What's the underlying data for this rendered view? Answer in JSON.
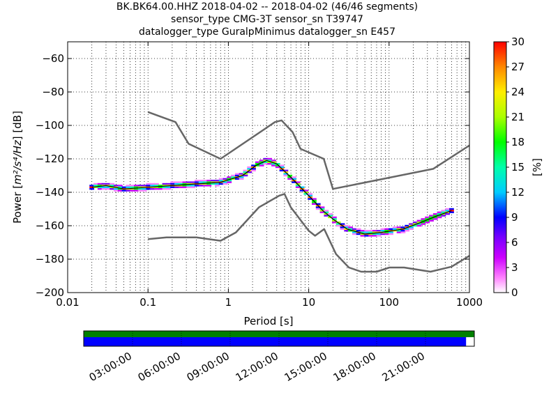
{
  "title_lines": [
    "BK.BK64.00.HHZ   2018-04-02 -- 2018-04-02  (46/46 segments)",
    "sensor_type CMG-3T sensor_sn T39747",
    "datalogger_type GuralpMinimus datalogger_sn E457"
  ],
  "chart_data": {
    "type": "heatmap",
    "xlabel": "Period [s]",
    "ylabel_prefix": "Power [",
    "ylabel_units": "m²/s⁴/Hz",
    "ylabel_suffix": "] [dB]",
    "xscale": "log",
    "xlim": [
      0.01,
      1000
    ],
    "ylim": [
      -200,
      -50
    ],
    "x_ticks": [
      {
        "v": 0.01,
        "label": "0.01"
      },
      {
        "v": 0.1,
        "label": "0.1"
      },
      {
        "v": 1,
        "label": "1"
      },
      {
        "v": 10,
        "label": "10"
      },
      {
        "v": 100,
        "label": "100"
      },
      {
        "v": 1000,
        "label": "1000"
      }
    ],
    "y_ticks": [
      {
        "v": -60,
        "label": "−60"
      },
      {
        "v": -80,
        "label": "−80"
      },
      {
        "v": -100,
        "label": "−100"
      },
      {
        "v": -120,
        "label": "−120"
      },
      {
        "v": -140,
        "label": "−140"
      },
      {
        "v": -160,
        "label": "−160"
      },
      {
        "v": -180,
        "label": "−180"
      },
      {
        "v": -200,
        "label": "−200"
      }
    ],
    "grid": true,
    "colorbar": {
      "label": "[%]",
      "range": [
        0,
        30
      ],
      "ticks": [
        {
          "v": 0,
          "label": "0"
        },
        {
          "v": 3,
          "label": "3"
        },
        {
          "v": 6,
          "label": "6"
        },
        {
          "v": 9,
          "label": "9"
        },
        {
          "v": 12,
          "label": "12"
        },
        {
          "v": 15,
          "label": "15"
        },
        {
          "v": 18,
          "label": "18"
        },
        {
          "v": 21,
          "label": "21"
        },
        {
          "v": 24,
          "label": "24"
        },
        {
          "v": 27,
          "label": "27"
        },
        {
          "v": 30,
          "label": "30"
        }
      ]
    },
    "nhnm": [
      [
        0.1,
        -92
      ],
      [
        0.22,
        -98
      ],
      [
        0.32,
        -111
      ],
      [
        0.8,
        -120
      ],
      [
        3.8,
        -98
      ],
      [
        4.6,
        -97
      ],
      [
        6.3,
        -104
      ],
      [
        7.9,
        -114
      ],
      [
        15.4,
        -120
      ],
      [
        20,
        -138
      ],
      [
        354,
        -126
      ],
      [
        1000,
        -112
      ]
    ],
    "nlnm": [
      [
        0.1,
        -168
      ],
      [
        0.17,
        -167
      ],
      [
        0.4,
        -167
      ],
      [
        0.8,
        -169
      ],
      [
        1.24,
        -164
      ],
      [
        2.4,
        -149
      ],
      [
        4.3,
        -142
      ],
      [
        5,
        -141
      ],
      [
        6,
        -149
      ],
      [
        10,
        -163
      ],
      [
        12,
        -166
      ],
      [
        15.6,
        -162
      ],
      [
        21.9,
        -177
      ],
      [
        31.6,
        -185
      ],
      [
        45,
        -187.5
      ],
      [
        70,
        -187.5
      ],
      [
        101,
        -185
      ],
      [
        154,
        -185
      ],
      [
        328,
        -187.5
      ],
      [
        600,
        -184.5
      ],
      [
        1000,
        -178
      ]
    ],
    "mode_curve": [
      [
        0.02,
        -137
      ],
      [
        0.03,
        -136
      ],
      [
        0.05,
        -138
      ],
      [
        0.1,
        -137
      ],
      [
        0.2,
        -136
      ],
      [
        0.4,
        -135
      ],
      [
        0.8,
        -134
      ],
      [
        1.5,
        -130
      ],
      [
        2.2,
        -124
      ],
      [
        3,
        -121
      ],
      [
        4,
        -123
      ],
      [
        6,
        -131
      ],
      [
        10,
        -142
      ],
      [
        15,
        -151
      ],
      [
        20,
        -156
      ],
      [
        30,
        -162
      ],
      [
        50,
        -165
      ],
      [
        80,
        -164
      ],
      [
        150,
        -162
      ],
      [
        250,
        -158
      ],
      [
        400,
        -154
      ],
      [
        600,
        -151
      ]
    ],
    "upper_spread": [
      [
        0.02,
        -134
      ],
      [
        0.05,
        -133
      ],
      [
        0.1,
        -132
      ],
      [
        0.2,
        -130
      ],
      [
        0.4,
        -128
      ],
      [
        0.8,
        -126
      ],
      [
        1.5,
        -121
      ],
      [
        3,
        -115
      ],
      [
        5,
        -117
      ],
      [
        8,
        -126
      ],
      [
        14,
        -134
      ],
      [
        20,
        -139
      ],
      [
        40,
        -143
      ],
      [
        100,
        -145
      ],
      [
        300,
        -146
      ],
      [
        600,
        -146
      ]
    ],
    "lower_spread": [
      [
        0.02,
        -138
      ],
      [
        0.05,
        -140
      ],
      [
        0.1,
        -140
      ],
      [
        0.2,
        -140
      ],
      [
        0.4,
        -139
      ],
      [
        0.8,
        -137
      ],
      [
        1.5,
        -133
      ],
      [
        3,
        -124
      ],
      [
        5,
        -132
      ],
      [
        8,
        -141
      ],
      [
        14,
        -155
      ],
      [
        20,
        -166
      ],
      [
        40,
        -177
      ],
      [
        100,
        -173
      ],
      [
        300,
        -165
      ],
      [
        600,
        -155
      ]
    ]
  },
  "timeline": {
    "ticks": [
      "03:00:00",
      "06:00:00",
      "09:00:00",
      "12:00:00",
      "15:00:00",
      "18:00:00",
      "21:00:00"
    ],
    "coverage_fraction": 0.979,
    "top_bar_color": "#008000",
    "bottom_bar_color": "#0000ff"
  }
}
